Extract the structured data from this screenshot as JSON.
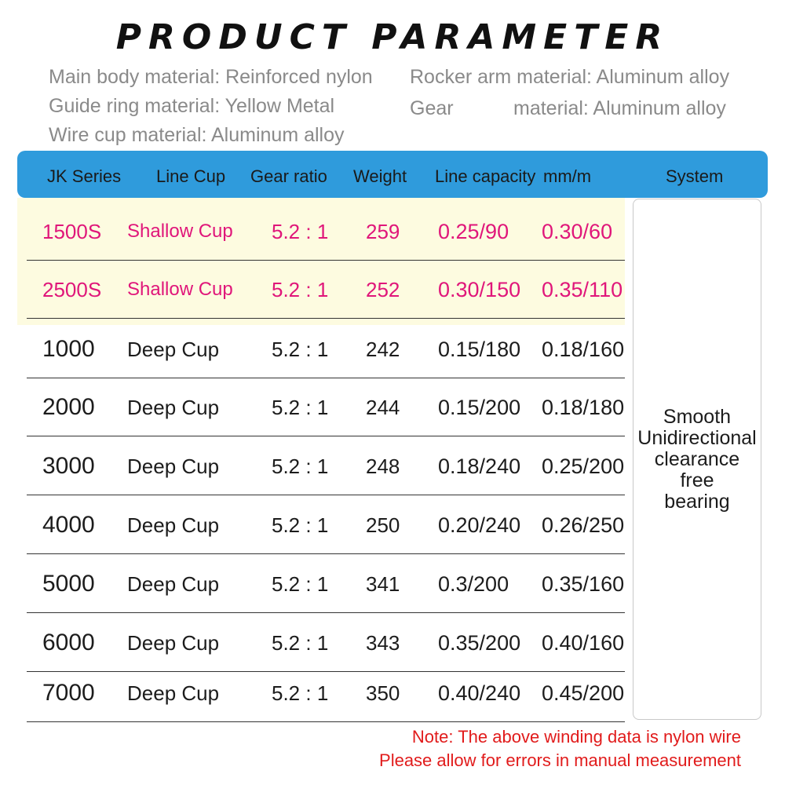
{
  "title": "PRODUCT PARAMETER",
  "specs": {
    "main_body": "Main body material:  Reinforced nylon",
    "guide_ring": "Guide ring material:  Yellow Metal",
    "wire_cup": "Wire    cup material:  Aluminum alloy",
    "rocker_arm": "Rocker arm material:  Aluminum alloy",
    "gear_label": "Gear",
    "gear_value": "material:  Aluminum alloy"
  },
  "table": {
    "headers": {
      "series": "JK  Series",
      "cup": "Line Cup",
      "ratio": "Gear  ratio",
      "weight": "Weight",
      "capacity": "Line capacity",
      "unit": "mm/m",
      "system": "System"
    },
    "rows": [
      {
        "series": "1500S",
        "cup": "Shallow Cup",
        "ratio": "5.2 : 1",
        "weight": "259",
        "cap1": "0.25/90",
        "cap2": "0.30/60"
      },
      {
        "series": "2500S",
        "cup": "Shallow Cup",
        "ratio": "5.2 : 1",
        "weight": "252",
        "cap1": "0.30/150",
        "cap2": "0.35/110"
      },
      {
        "series": "1000",
        "cup": "Deep Cup",
        "ratio": "5.2 : 1",
        "weight": "242",
        "cap1": "0.15/180",
        "cap2": "0.18/160"
      },
      {
        "series": "2000",
        "cup": "Deep Cup",
        "ratio": "5.2 : 1",
        "weight": "244",
        "cap1": "0.15/200",
        "cap2": "0.18/180"
      },
      {
        "series": "3000",
        "cup": "Deep Cup",
        "ratio": "5.2 : 1",
        "weight": "248",
        "cap1": "0.18/240",
        "cap2": "0.25/200"
      },
      {
        "series": "4000",
        "cup": "Deep Cup",
        "ratio": "5.2 : 1",
        "weight": "250",
        "cap1": "0.20/240",
        "cap2": "0.26/250"
      },
      {
        "series": "5000",
        "cup": "Deep Cup",
        "ratio": "5.2 : 1",
        "weight": "341",
        "cap1": "0.3/200",
        "cap2": "0.35/160"
      },
      {
        "series": "6000",
        "cup": "Deep Cup",
        "ratio": "5.2 : 1",
        "weight": "343",
        "cap1": "0.35/200",
        "cap2": "0.40/160"
      },
      {
        "series": "7000",
        "cup": "Deep Cup",
        "ratio": "5.2 : 1",
        "weight": "350",
        "cap1": "0.40/240",
        "cap2": "0.45/200"
      }
    ],
    "system_lines": [
      "Smooth",
      "Unidirectional",
      "clearance",
      "free",
      "bearing"
    ]
  },
  "notes": {
    "line1": "Note: The above winding data is nylon wire",
    "line2": "Please allow for errors in manual measurement"
  },
  "colors": {
    "header_bg": "#2f9bdc",
    "highlight_bg": "#fdfbe0",
    "highlight_text": "#e0167a",
    "note_text": "#e11b1b"
  }
}
